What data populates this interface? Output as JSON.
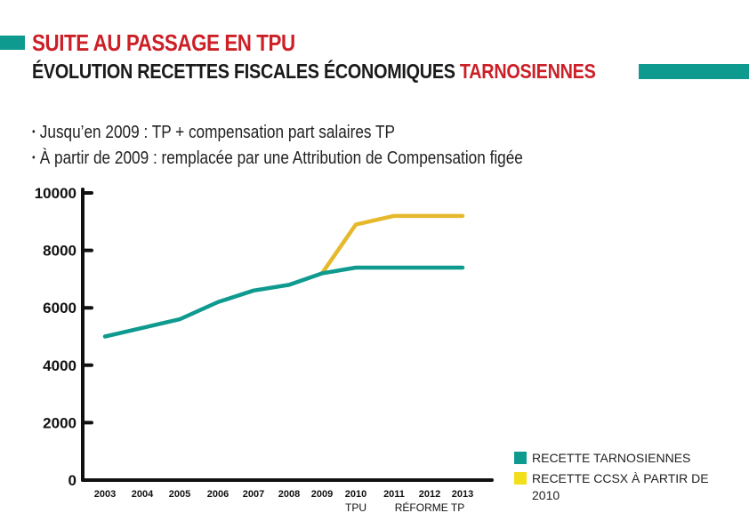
{
  "header": {
    "title": "SUITE AU PASSAGE EN TPU",
    "subtitle_prefix": "ÉVOLUTION RECETTES FISCALES ÉCONOMIQUES ",
    "subtitle_accent": "TARNOSIENNES"
  },
  "bullets": [
    "Jusqu’en 2009 : TP + compensation part salaires TP",
    "À partir de 2009 : remplacée par une Attribution de Compensation figée"
  ],
  "colors": {
    "teal": "#0e9a8f",
    "yellow": "#e6b92c",
    "legend_yellow": "#f2de1a",
    "red": "#cc1f26",
    "axis": "#111111"
  },
  "chart_data": {
    "type": "line",
    "title": "ÉVOLUTION RECETTES FISCALES ÉCONOMIQUES TARNOSIENNES",
    "xlabel": "",
    "ylabel": "",
    "categories": [
      "2003",
      "2004",
      "2005",
      "2006",
      "2007",
      "2008",
      "2009",
      "2010",
      "2011",
      "2012",
      "2013"
    ],
    "category_sublabels": [
      {
        "text": "TPU",
        "at": "2010"
      },
      {
        "text": "RÉFORME TP",
        "at": "2012"
      }
    ],
    "ylim": [
      0,
      10000
    ],
    "yticks": [
      0,
      2000,
      4000,
      6000,
      8000,
      10000
    ],
    "ytick_labels": [
      "0",
      "2000",
      "4000",
      "6000",
      "8000",
      "10000"
    ],
    "grid": false,
    "legend_position": "bottom-right",
    "series": [
      {
        "name": "RECETTE TARNOSIENNES",
        "color": "#0e9a8f",
        "x": [
          "2003",
          "2004",
          "2005",
          "2006",
          "2007",
          "2008",
          "2009",
          "2010",
          "2011",
          "2012",
          "2013"
        ],
        "values": [
          5000,
          5300,
          5600,
          6200,
          6600,
          6800,
          7200,
          7400,
          7400,
          7400,
          7400
        ]
      },
      {
        "name": "RECETTE CCSX À PARTIR DE 2010",
        "color": "#e6b92c",
        "x": [
          "2009",
          "2010",
          "2011",
          "2012",
          "2013"
        ],
        "values": [
          7200,
          8900,
          9200,
          9200,
          9200
        ]
      }
    ]
  }
}
